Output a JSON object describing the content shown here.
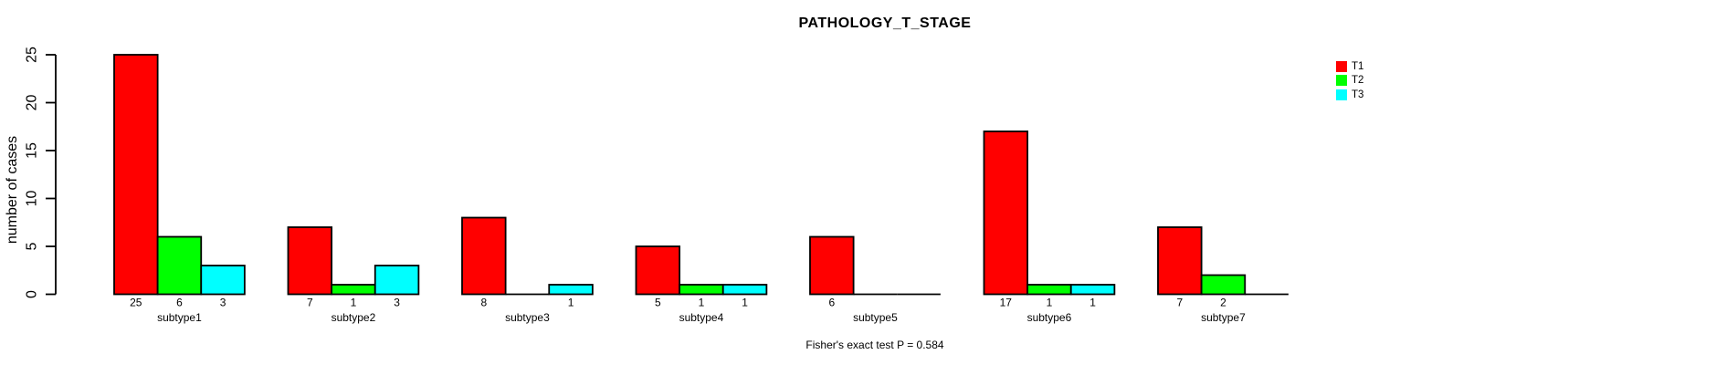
{
  "header": {
    "title": "PATHOLOGY_T_STAGE"
  },
  "footer": {
    "caption": "Fisher's exact test P = 0.584"
  },
  "chart_data": {
    "type": "bar",
    "title": "PATHOLOGY_T_STAGE",
    "xlabel": "",
    "ylabel": "number of cases",
    "ylim": [
      0,
      25
    ],
    "yticks": [
      0,
      5,
      10,
      15,
      20,
      25
    ],
    "grid": false,
    "legend_position": "topright",
    "categories": [
      "subtype1",
      "subtype2",
      "subtype3",
      "subtype4",
      "subtype5",
      "subtype6",
      "subtype7"
    ],
    "series": [
      {
        "name": "T1",
        "color": "#FF0000",
        "values": [
          25,
          7,
          8,
          5,
          6,
          17,
          7
        ]
      },
      {
        "name": "T2",
        "color": "#00FF00",
        "values": [
          6,
          1,
          0,
          1,
          0,
          1,
          2
        ]
      },
      {
        "name": "T3",
        "color": "#00FFFF",
        "values": [
          3,
          3,
          1,
          1,
          0,
          1,
          0
        ]
      }
    ],
    "bar_value_labels": true,
    "zero_bars_drawn_as_baseline": true,
    "annotation": "Fisher's exact test P = 0.584"
  },
  "colors": {
    "background": "#FFFFFF",
    "axis": "#000000",
    "text": "#000000"
  }
}
